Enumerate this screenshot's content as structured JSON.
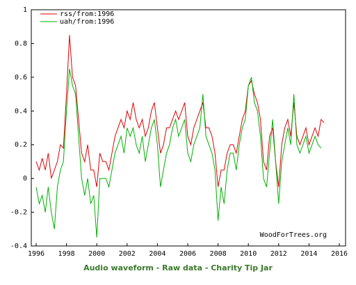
{
  "chart_data": {
    "type": "line",
    "x": [
      1996.0,
      1996.2,
      1996.4,
      1996.6,
      1996.8,
      1997.0,
      1997.2,
      1997.4,
      1997.6,
      1997.8,
      1998.0,
      1998.2,
      1998.4,
      1998.6,
      1998.8,
      1999.0,
      1999.2,
      1999.4,
      1999.6,
      1999.8,
      2000.0,
      2000.2,
      2000.4,
      2000.6,
      2000.8,
      2001.0,
      2001.2,
      2001.4,
      2001.6,
      2001.8,
      2002.0,
      2002.2,
      2002.4,
      2002.6,
      2002.8,
      2003.0,
      2003.2,
      2003.4,
      2003.6,
      2003.8,
      2004.0,
      2004.2,
      2004.4,
      2004.6,
      2004.8,
      2005.0,
      2005.2,
      2005.4,
      2005.6,
      2005.8,
      2006.0,
      2006.2,
      2006.4,
      2006.6,
      2006.8,
      2007.0,
      2007.2,
      2007.4,
      2007.6,
      2007.8,
      2008.0,
      2008.2,
      2008.4,
      2008.6,
      2008.8,
      2009.0,
      2009.2,
      2009.4,
      2009.6,
      2009.8,
      2010.0,
      2010.2,
      2010.4,
      2010.6,
      2010.8,
      2011.0,
      2011.2,
      2011.4,
      2011.6,
      2011.8,
      2012.0,
      2012.2,
      2012.4,
      2012.6,
      2012.8,
      2013.0,
      2013.2,
      2013.4,
      2013.6,
      2013.8,
      2014.0,
      2014.2,
      2014.4,
      2014.6,
      2014.8,
      2015.0
    ],
    "series": [
      {
        "name": "rss/from:1996",
        "color": "#e00000",
        "values": [
          0.1,
          0.05,
          0.12,
          0.05,
          0.15,
          0.0,
          0.05,
          0.1,
          0.2,
          0.18,
          0.5,
          0.85,
          0.6,
          0.55,
          0.35,
          0.15,
          0.1,
          0.2,
          0.05,
          0.05,
          -0.05,
          0.15,
          0.1,
          0.1,
          0.05,
          0.15,
          0.25,
          0.3,
          0.35,
          0.3,
          0.4,
          0.35,
          0.45,
          0.35,
          0.3,
          0.35,
          0.25,
          0.3,
          0.4,
          0.45,
          0.3,
          0.15,
          0.2,
          0.3,
          0.3,
          0.35,
          0.4,
          0.35,
          0.4,
          0.45,
          0.25,
          0.2,
          0.3,
          0.35,
          0.4,
          0.45,
          0.3,
          0.3,
          0.25,
          0.15,
          -0.05,
          0.05,
          0.05,
          0.15,
          0.2,
          0.2,
          0.15,
          0.25,
          0.35,
          0.4,
          0.55,
          0.58,
          0.5,
          0.45,
          0.35,
          0.1,
          0.05,
          0.25,
          0.3,
          0.1,
          -0.05,
          0.2,
          0.3,
          0.35,
          0.25,
          0.45,
          0.25,
          0.2,
          0.25,
          0.3,
          0.2,
          0.25,
          0.3,
          0.25,
          0.35,
          0.33
        ]
      },
      {
        "name": "uah/from:1996",
        "color": "#00b000",
        "values": [
          -0.05,
          -0.15,
          -0.1,
          -0.2,
          -0.05,
          -0.2,
          -0.3,
          -0.05,
          0.05,
          0.1,
          0.4,
          0.65,
          0.55,
          0.5,
          0.25,
          0.0,
          -0.1,
          0.0,
          -0.15,
          -0.1,
          -0.35,
          0.0,
          0.0,
          0.0,
          -0.05,
          0.05,
          0.15,
          0.2,
          0.25,
          0.15,
          0.3,
          0.25,
          0.3,
          0.2,
          0.15,
          0.25,
          0.1,
          0.2,
          0.3,
          0.35,
          0.2,
          -0.05,
          0.05,
          0.15,
          0.2,
          0.3,
          0.35,
          0.25,
          0.3,
          0.35,
          0.15,
          0.1,
          0.2,
          0.25,
          0.3,
          0.5,
          0.25,
          0.2,
          0.15,
          0.05,
          -0.25,
          -0.05,
          -0.15,
          0.05,
          0.15,
          0.15,
          0.05,
          0.2,
          0.3,
          0.35,
          0.55,
          0.6,
          0.45,
          0.4,
          0.25,
          0.0,
          -0.05,
          0.15,
          0.35,
          0.1,
          -0.15,
          0.1,
          0.2,
          0.3,
          0.2,
          0.5,
          0.2,
          0.15,
          0.2,
          0.25,
          0.15,
          0.2,
          0.25,
          0.2,
          0.18,
          null
        ]
      }
    ],
    "xlim": [
      1996,
      2016
    ],
    "xticks": [
      1996,
      1998,
      2000,
      2002,
      2004,
      2006,
      2008,
      2010,
      2012,
      2014,
      2016
    ],
    "ylim": [
      -0.4,
      1
    ],
    "yticks": [
      -0.4,
      -0.2,
      0,
      0.2,
      0.4,
      0.6,
      0.8,
      1
    ],
    "annotation": "WoodForTrees.org",
    "footer": "Audio waveform - Raw data - Charity Tip Jar"
  }
}
